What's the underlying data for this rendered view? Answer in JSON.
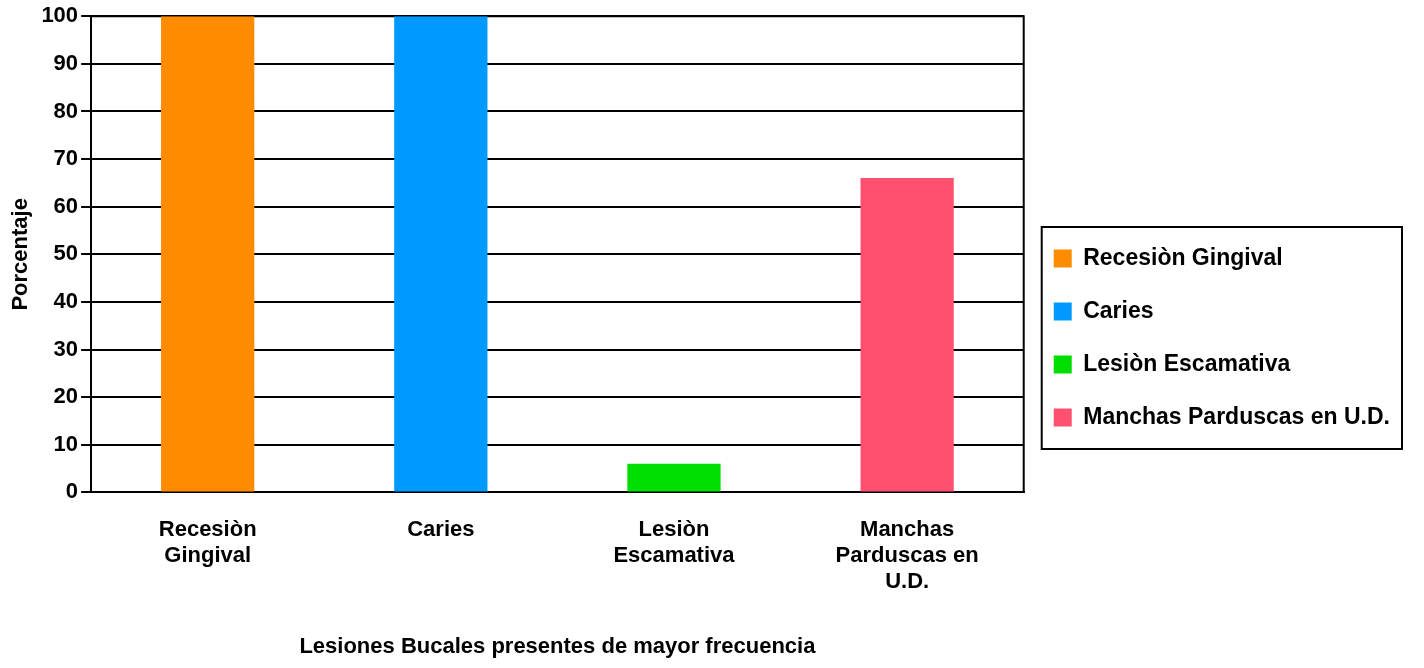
{
  "chart_data": {
    "type": "bar",
    "xlabel": "Lesiones Bucales presentes de mayor frecuencia",
    "ylabel": "Porcentaje",
    "categories": [
      "Recesiòn Gingival",
      "Caries",
      "Lesiòn Escamativa",
      "Manchas Parduscas en U.D."
    ],
    "series": [
      {
        "name": "Recesiòn Gingival",
        "color": "#ff8c00",
        "values": [
          100,
          null,
          null,
          null
        ]
      },
      {
        "name": "Caries",
        "color": "#0099ff",
        "values": [
          null,
          100,
          null,
          null
        ]
      },
      {
        "name": "Lesiòn Escamativa",
        "color": "#00dd00",
        "values": [
          null,
          null,
          6,
          null
        ]
      },
      {
        "name": "Manchas Parduscas en U.D.",
        "color": "#ff5070",
        "values": [
          null,
          null,
          null,
          66
        ]
      }
    ],
    "ylim": [
      0,
      100
    ],
    "yticks": [
      0,
      10,
      20,
      30,
      40,
      50,
      60,
      70,
      80,
      90,
      100
    ],
    "grid": "y",
    "legend": "right"
  }
}
